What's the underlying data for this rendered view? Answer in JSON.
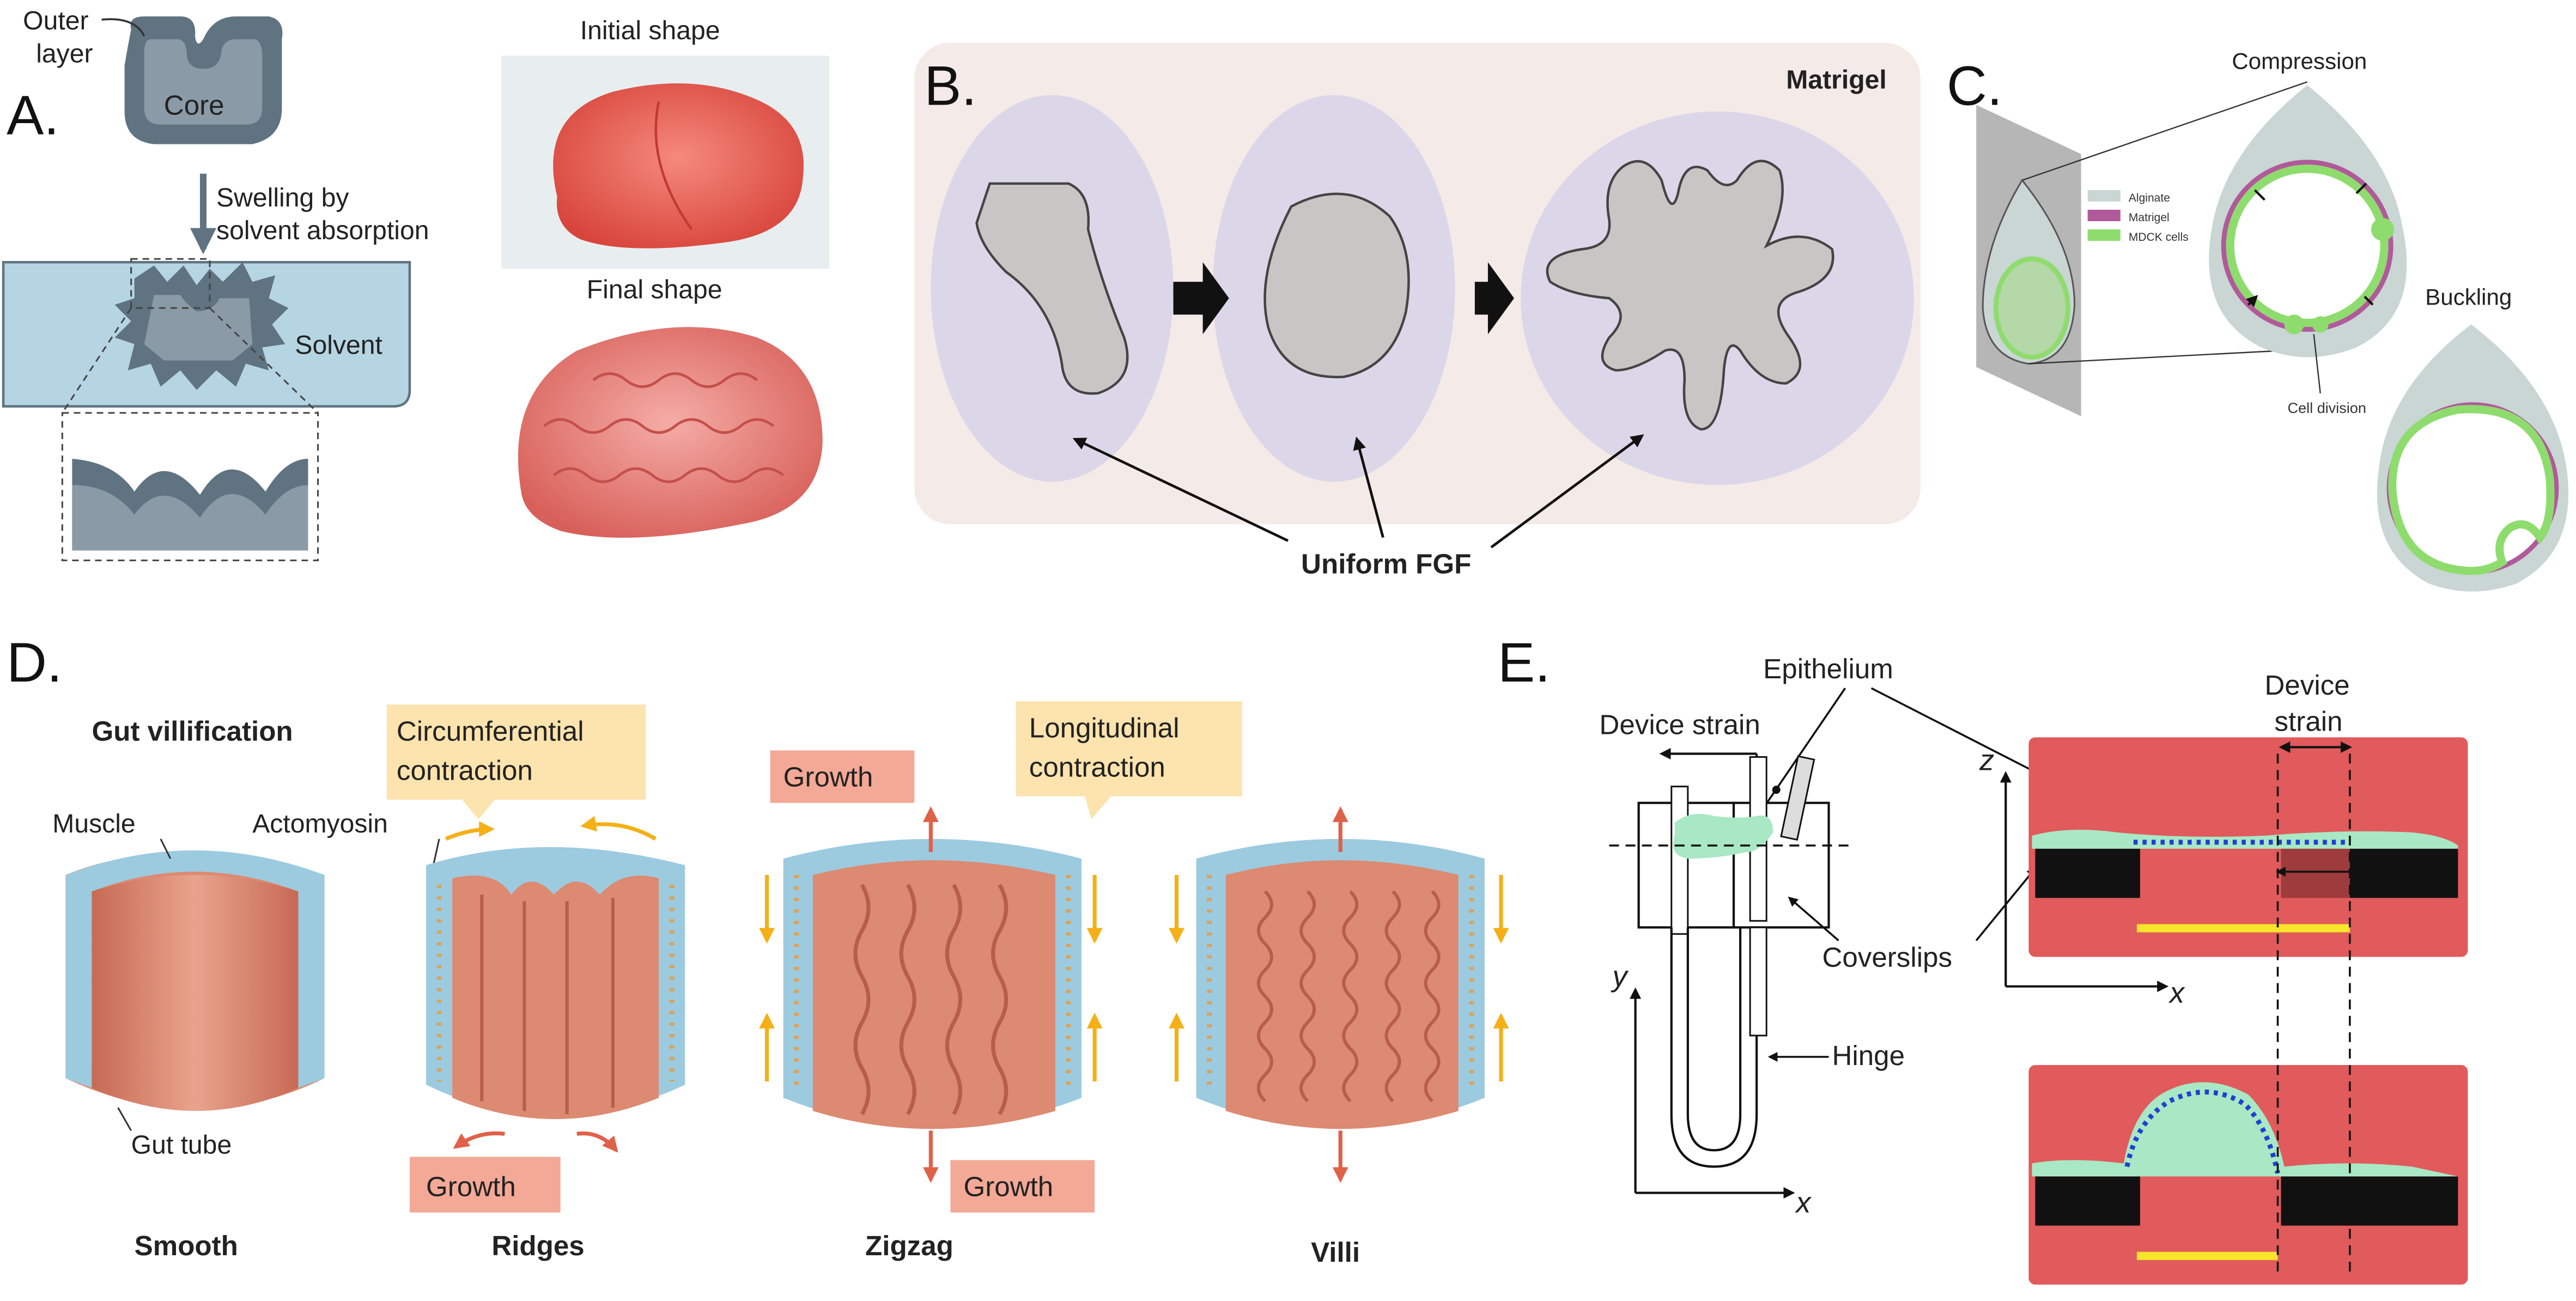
{
  "panel_a": {
    "letter": "A.",
    "outer_layer_label": "Outer\nlayer",
    "core_label": "Core",
    "swelling_label": "Swelling by\nsolvent absorption",
    "solvent_label": "Solvent",
    "initial_shape_label": "Initial shape",
    "final_shape_label": "Final shape"
  },
  "panel_b": {
    "letter": "B.",
    "matrigel_label": "Matrigel",
    "fgf_label": "Uniform FGF"
  },
  "panel_c": {
    "letter": "C.",
    "compression_label": "Compression",
    "buckling_label": "Buckling",
    "cell_division_label": "Cell division",
    "legend": [
      {
        "label": "Alginate",
        "color": "#c9d6d4"
      },
      {
        "label": "Matrigel",
        "color": "#b05a9a"
      },
      {
        "label": "MDCK cells",
        "color": "#8fdc6e"
      }
    ]
  },
  "panel_d": {
    "letter": "D.",
    "title": "Gut villification",
    "muscle_label": "Muscle",
    "actomyosin_label": "Actomyosin",
    "gut_tube_label": "Gut tube",
    "circ_contraction_label": "Circumferential\ncontraction",
    "long_contraction_label": "Longitudinal\ncontraction",
    "growth_labels": [
      "Growth",
      "Growth",
      "Growth"
    ],
    "stages": [
      "Smooth",
      "Ridges",
      "Zigzag",
      "Villi"
    ]
  },
  "panel_e": {
    "letter": "E.",
    "epithelium_label": "Epithelium",
    "device_strain_label": "Device strain",
    "device_strain_label_2": "Device\nstrain",
    "coverslips_label": "Coverslips",
    "hinge_label": "Hinge",
    "axes": {
      "y": "y",
      "x": "x",
      "z": "z",
      "x2": "x"
    }
  },
  "colors": {
    "slate": "#5f7381",
    "slate_light": "#8a9ba7",
    "solvent": "#b6d5e3",
    "matrigel_bg": "#f4ebe8",
    "lobe": "#dcd7e8",
    "tissue_gray": "#c9c5c4",
    "gut_red": "#dc8a72",
    "muscle_blue": "#9ccbe0",
    "callout_yellow": "#fde3ad",
    "callout_salmon": "#f3a996",
    "arrow_yellow": "#f5b017",
    "arrow_red": "#e0614a",
    "device_red": "#e15a5c",
    "bead_blue": "#1f3fd6",
    "epi_green": "#a8e8c4",
    "bar_yellow": "#f7e62a"
  }
}
